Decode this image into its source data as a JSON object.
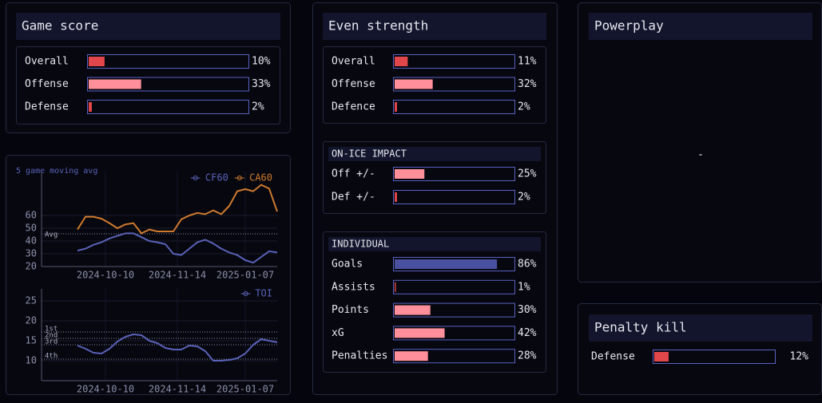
{
  "game_score": {
    "title": "Game score",
    "rows": [
      {
        "label": "Overall",
        "value": 10,
        "value_label": "10%",
        "color": "#e0464a"
      },
      {
        "label": "Offense",
        "value": 33,
        "value_label": "33%",
        "color": "#ff8f9a"
      },
      {
        "label": "Defense",
        "value": 2,
        "value_label": "2%",
        "color": "#e0464a"
      }
    ]
  },
  "even_strength": {
    "title": "Even strength",
    "rows": [
      {
        "label": "Overall",
        "value": 11,
        "value_label": "11%",
        "color": "#e0464a"
      },
      {
        "label": "Offense",
        "value": 32,
        "value_label": "32%",
        "color": "#ff8f9a"
      },
      {
        "label": "Defence",
        "value": 2,
        "value_label": "2%",
        "color": "#e0464a"
      }
    ]
  },
  "on_ice_impact": {
    "title": "ON-ICE IMPACT",
    "rows": [
      {
        "label": "Off +/-",
        "value": 25,
        "value_label": "25%",
        "color": "#ff8f9a"
      },
      {
        "label": "Def +/-",
        "value": 2,
        "value_label": "2%",
        "color": "#e0464a"
      }
    ]
  },
  "individual": {
    "title": "INDIVIDUAL",
    "rows": [
      {
        "label": "Goals",
        "value": 86,
        "value_label": "86%",
        "color": "#4a50a0"
      },
      {
        "label": "Assists",
        "value": 1,
        "value_label": "1%",
        "color": "#e0464a"
      },
      {
        "label": "Points",
        "value": 30,
        "value_label": "30%",
        "color": "#ff8f9a"
      },
      {
        "label": "xG",
        "value": 42,
        "value_label": "42%",
        "color": "#ff8f9a"
      },
      {
        "label": "Penalties",
        "value": 28,
        "value_label": "28%",
        "color": "#ff8f9a"
      }
    ]
  },
  "powerplay": {
    "title": "Powerplay",
    "text": "-"
  },
  "penalty_kill": {
    "title": "Penalty kill",
    "rows": [
      {
        "label": "Defense",
        "value": 12,
        "value_label": "12%",
        "color": "#e0464a"
      }
    ]
  },
  "chart_data": [
    {
      "type": "line",
      "subtitle": "5 game moving avg",
      "x": [
        0,
        1,
        2,
        3,
        4,
        5,
        6,
        7,
        8,
        9,
        10,
        11,
        12,
        13,
        14,
        15,
        16,
        17,
        18,
        19,
        20,
        21,
        22,
        23,
        24,
        25
      ],
      "series": [
        {
          "name": "CF60",
          "color": "#5a62b8",
          "values": [
            32.5,
            34,
            37,
            39,
            42,
            44,
            46,
            46,
            43,
            40,
            39,
            37.5,
            30,
            29,
            34,
            39,
            41,
            38,
            34,
            31,
            29,
            25,
            23,
            27.5,
            32,
            31
          ]
        },
        {
          "name": "CA60",
          "color": "#d07a2e",
          "values": [
            49,
            59,
            59,
            57.5,
            54,
            50,
            53,
            54,
            46,
            49,
            47.5,
            47.5,
            47.5,
            57,
            60,
            62,
            61,
            64,
            61,
            67.5,
            79,
            80.6,
            79,
            84,
            81,
            63
          ]
        }
      ],
      "xlim": [
        -4.5,
        25
      ],
      "ylim": [
        20,
        85
      ],
      "yticks": [
        20,
        30,
        40,
        50,
        60
      ],
      "xticks": [
        {
          "value": 3.5,
          "label": "2024-10-10"
        },
        {
          "value": 12.5,
          "label": "2024-11-14"
        },
        {
          "value": 21,
          "label": "2025-01-07"
        }
      ],
      "annotations": [
        {
          "label": "Avg",
          "value": 45.6
        }
      ],
      "legend": "upper right",
      "grid": true
    },
    {
      "type": "line",
      "x": [
        0,
        1,
        2,
        3,
        4,
        5,
        6,
        7,
        8,
        9,
        10,
        11,
        12,
        13,
        14,
        15,
        16,
        17,
        18,
        19,
        20,
        21,
        22,
        23,
        24,
        25
      ],
      "series": [
        {
          "name": "TOI",
          "color": "#5a62b8",
          "values": [
            13.8,
            13,
            12,
            11.8,
            13,
            14.8,
            16,
            16.6,
            16.4,
            15,
            14.4,
            13.2,
            12.8,
            12.8,
            13.8,
            13.6,
            12.4,
            10,
            10,
            10.2,
            10.6,
            11.8,
            14,
            15.4,
            15,
            14.6
          ]
        }
      ],
      "xlim": [
        -4.5,
        25
      ],
      "ylim": [
        5,
        25
      ],
      "yticks": [
        10,
        15,
        20,
        25
      ],
      "xticks": [
        {
          "value": 3.5,
          "label": "2024-10-10"
        },
        {
          "value": 12.5,
          "label": "2024-11-14"
        },
        {
          "value": 21,
          "label": "2025-01-07"
        }
      ],
      "annotations": [
        {
          "label": "1st",
          "value": 17.2
        },
        {
          "label": "2nd",
          "value": 15.6
        },
        {
          "label": "3rd",
          "value": 14
        },
        {
          "label": "4th",
          "value": 10.4
        }
      ],
      "legend": "upper right",
      "grid": true
    }
  ]
}
